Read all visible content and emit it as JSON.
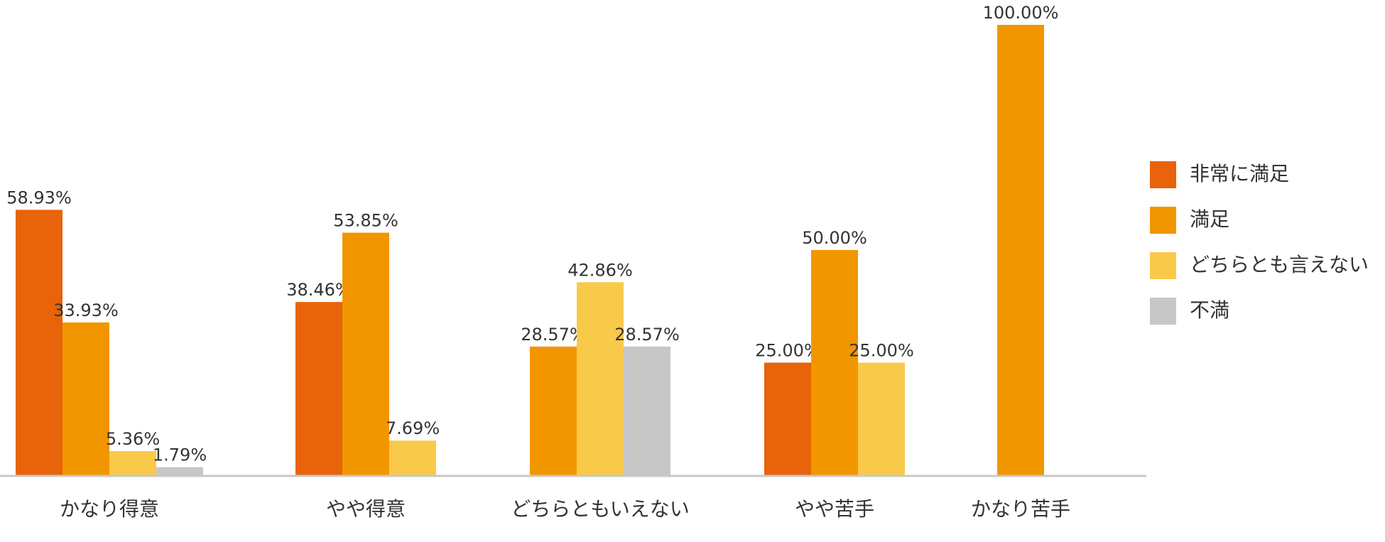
{
  "chart_data": {
    "type": "bar",
    "categories": [
      "かなり得意",
      "やや得意",
      "どちらともいえない",
      "やや苦手",
      "かなり苦手"
    ],
    "series": [
      {
        "name": "非常に満足",
        "color": "#e8630a",
        "values": [
          58.93,
          38.46,
          null,
          25.0,
          null
        ],
        "value_labels": [
          "58.93%",
          "38.46%",
          null,
          "25.00%",
          null
        ]
      },
      {
        "name": "満足",
        "color": "#f29600",
        "values": [
          33.93,
          53.85,
          28.57,
          50.0,
          100.0
        ],
        "value_labels": [
          "33.93%",
          "53.85%",
          "28.57%",
          "50.00%",
          "100.00%"
        ]
      },
      {
        "name": "どちらとも言えない",
        "color": "#f9c94a",
        "values": [
          5.36,
          7.69,
          42.86,
          25.0,
          null
        ],
        "value_labels": [
          "5.36%",
          "7.69%",
          "42.86%",
          "25.00%",
          null
        ]
      },
      {
        "name": "不満",
        "color": "#c8c7c8",
        "values": [
          1.79,
          null,
          28.57,
          null,
          null
        ],
        "value_labels": [
          "1.79%",
          null,
          "28.57%",
          null,
          null
        ]
      }
    ],
    "ylim": [
      0,
      100
    ],
    "legend": "right"
  }
}
